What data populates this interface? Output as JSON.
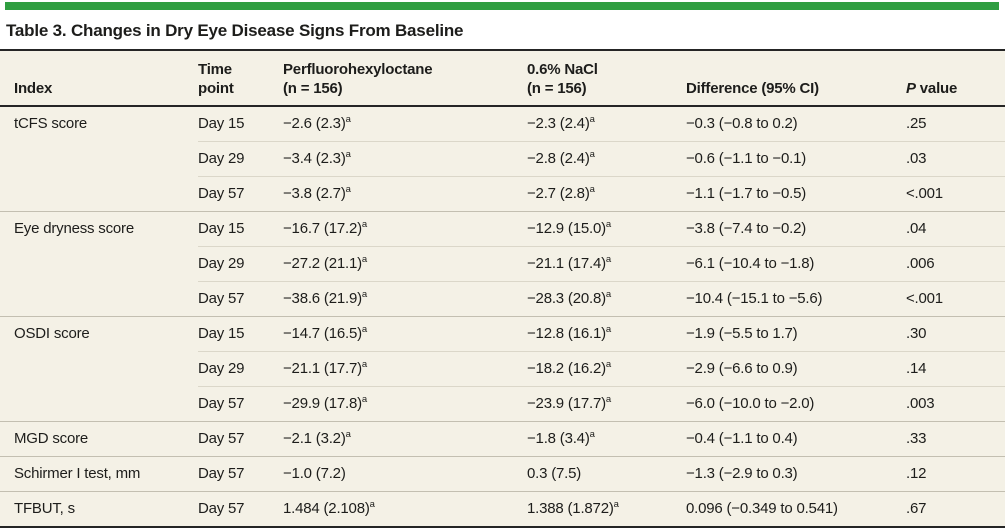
{
  "title": "Table 3. Changes in Dry Eye Disease Signs From Baseline",
  "colors": {
    "accent_green": "#2f9e41",
    "table_background": "#f4f1e6",
    "rule_dark": "#252525",
    "rule_section": "#c3bfb1",
    "rule_inner": "#dbd7c9",
    "text": "#1d1d1b"
  },
  "header": {
    "index": "Index",
    "time_point": [
      "Time",
      "point"
    ],
    "drug": [
      "Perfluorohexyloctane",
      "(n = 156)"
    ],
    "nacl": [
      "0.6% NaCl",
      "(n = 156)"
    ],
    "difference": "Difference (95% CI)",
    "p_value_italic": "P",
    "p_value_rest": " value"
  },
  "rows": [
    {
      "index": "tCFS score",
      "time": "Day 15",
      "drug": "−2.6 (2.3)",
      "drug_sup": "a",
      "nacl": "−2.3 (2.4)",
      "nacl_sup": "a",
      "diff": "−0.3 (−0.8 to 0.2)",
      "p": ".25",
      "section_start": true
    },
    {
      "index": "",
      "time": "Day 29",
      "drug": "−3.4 (2.3)",
      "drug_sup": "a",
      "nacl": "−2.8 (2.4)",
      "nacl_sup": "a",
      "diff": "−0.6 (−1.1 to −0.1)",
      "p": ".03",
      "section_start": false
    },
    {
      "index": "",
      "time": "Day 57",
      "drug": "−3.8 (2.7)",
      "drug_sup": "a",
      "nacl": "−2.7 (2.8)",
      "nacl_sup": "a",
      "diff": "−1.1 (−1.7 to −0.5)",
      "p": "<.001",
      "section_start": false
    },
    {
      "index": "Eye dryness score",
      "time": "Day 15",
      "drug": "−16.7 (17.2)",
      "drug_sup": "a",
      "nacl": "−12.9 (15.0)",
      "nacl_sup": "a",
      "diff": "−3.8 (−7.4 to −0.2)",
      "p": ".04",
      "section_start": true
    },
    {
      "index": "",
      "time": "Day 29",
      "drug": "−27.2 (21.1)",
      "drug_sup": "a",
      "nacl": "−21.1 (17.4)",
      "nacl_sup": "a",
      "diff": "−6.1 (−10.4 to −1.8)",
      "p": ".006",
      "section_start": false
    },
    {
      "index": "",
      "time": "Day 57",
      "drug": "−38.6 (21.9)",
      "drug_sup": "a",
      "nacl": "−28.3 (20.8)",
      "nacl_sup": "a",
      "diff": "−10.4 (−15.1 to −5.6)",
      "p": "<.001",
      "section_start": false
    },
    {
      "index": "OSDI score",
      "time": "Day 15",
      "drug": "−14.7 (16.5)",
      "drug_sup": "a",
      "nacl": "−12.8 (16.1)",
      "nacl_sup": "a",
      "diff": "−1.9 (−5.5 to 1.7)",
      "p": ".30",
      "section_start": true
    },
    {
      "index": "",
      "time": "Day 29",
      "drug": "−21.1 (17.7)",
      "drug_sup": "a",
      "nacl": "−18.2 (16.2)",
      "nacl_sup": "a",
      "diff": "−2.9 (−6.6 to 0.9)",
      "p": ".14",
      "section_start": false
    },
    {
      "index": "",
      "time": "Day 57",
      "drug": "−29.9 (17.8)",
      "drug_sup": "a",
      "nacl": "−23.9 (17.7)",
      "nacl_sup": "a",
      "diff": "−6.0 (−10.0 to −2.0)",
      "p": ".003",
      "section_start": false
    },
    {
      "index": "MGD score",
      "time": "Day 57",
      "drug": "−2.1 (3.2)",
      "drug_sup": "a",
      "nacl": "−1.8 (3.4)",
      "nacl_sup": "a",
      "diff": "−0.4 (−1.1 to 0.4)",
      "p": ".33",
      "section_start": true
    },
    {
      "index": "Schirmer I test, mm",
      "time": "Day 57",
      "drug": "−1.0 (7.2)",
      "drug_sup": "",
      "nacl": "0.3 (7.5)",
      "nacl_sup": "",
      "diff": "−1.3 (−2.9 to 0.3)",
      "p": ".12",
      "section_start": true
    },
    {
      "index": "TFBUT, s",
      "time": "Day 57",
      "drug": "1.484 (2.108)",
      "drug_sup": "a",
      "nacl": "1.388 (1.872)",
      "nacl_sup": "a",
      "diff": "0.096 (−0.349 to 0.541)",
      "p": ".67",
      "section_start": true
    }
  ]
}
